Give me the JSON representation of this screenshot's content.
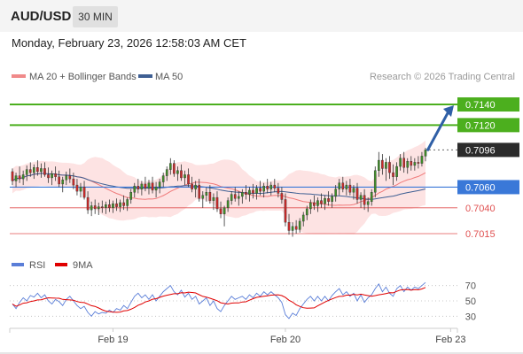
{
  "header": {
    "symbol": "AUD/USD",
    "timeframe": "30 MIN"
  },
  "timestamp": "Monday, February 23, 2026 12:58:03 AM CET",
  "credit": "Research © 2026 Trading Central",
  "colors": {
    "resistance": "#4caf1e",
    "support": "#e05050",
    "pivot": "#3a78d8",
    "current": "#2b2b2b",
    "arrow": "#2f5fa6",
    "bollinger_fill": "#fde3e3",
    "ma20": "#f07a7a",
    "ma50": "#3e5f93",
    "candle_up": "#3f8f28",
    "candle_down": "#cc2a2a",
    "rsi": "#5a7ed8",
    "rsi_ma": "#e00000"
  },
  "chart_data": [
    {
      "type": "candlestick",
      "legend": [
        {
          "name": "MA 20 + Bollinger Bands",
          "color": "#f08a8a"
        },
        {
          "name": "MA 50",
          "color": "#3e5f93"
        }
      ],
      "ylim": [
        0.6997,
        0.7158
      ],
      "x_ticks": [
        {
          "label": "Feb 19",
          "index": 28
        },
        {
          "label": "Feb 20",
          "index": 76
        },
        {
          "label": "Feb 23",
          "index": 122
        }
      ],
      "candles": [
        [
          0.7075,
          0.7078,
          0.7062,
          0.7066
        ],
        [
          0.7066,
          0.7074,
          0.706,
          0.7071
        ],
        [
          0.7071,
          0.708,
          0.7064,
          0.7068
        ],
        [
          0.7068,
          0.7076,
          0.7062,
          0.7072
        ],
        [
          0.7072,
          0.7081,
          0.7066,
          0.7077
        ],
        [
          0.7077,
          0.7084,
          0.707,
          0.7074
        ],
        [
          0.7074,
          0.7082,
          0.7068,
          0.7079
        ],
        [
          0.7079,
          0.7086,
          0.7071,
          0.7075
        ],
        [
          0.7075,
          0.7083,
          0.7069,
          0.7078
        ],
        [
          0.7078,
          0.7084,
          0.707,
          0.7072
        ],
        [
          0.7072,
          0.7079,
          0.7064,
          0.7069
        ],
        [
          0.7069,
          0.7076,
          0.7062,
          0.7073
        ],
        [
          0.7073,
          0.708,
          0.7066,
          0.707
        ],
        [
          0.707,
          0.7076,
          0.706,
          0.7063
        ],
        [
          0.7063,
          0.707,
          0.7055,
          0.7067
        ],
        [
          0.7067,
          0.7075,
          0.7062,
          0.7071
        ],
        [
          0.7071,
          0.7078,
          0.7064,
          0.7068
        ],
        [
          0.7068,
          0.7074,
          0.7058,
          0.7062
        ],
        [
          0.7062,
          0.7068,
          0.7052,
          0.7056
        ],
        [
          0.7056,
          0.7064,
          0.705,
          0.706
        ],
        [
          0.706,
          0.7066,
          0.7048,
          0.705
        ],
        [
          0.705,
          0.7056,
          0.7034,
          0.7038
        ],
        [
          0.7038,
          0.7046,
          0.7032,
          0.7042
        ],
        [
          0.7042,
          0.7048,
          0.7034,
          0.7039
        ],
        [
          0.7039,
          0.7045,
          0.7033,
          0.7041
        ],
        [
          0.7041,
          0.7047,
          0.7035,
          0.704
        ],
        [
          0.704,
          0.7046,
          0.7034,
          0.7043
        ],
        [
          0.7043,
          0.7048,
          0.7036,
          0.704
        ],
        [
          0.704,
          0.7047,
          0.7035,
          0.7044
        ],
        [
          0.7044,
          0.7049,
          0.7037,
          0.7041
        ],
        [
          0.7041,
          0.7048,
          0.7036,
          0.7045
        ],
        [
          0.7045,
          0.7052,
          0.7038,
          0.7042
        ],
        [
          0.7042,
          0.705,
          0.7037,
          0.7048
        ],
        [
          0.7048,
          0.7058,
          0.7044,
          0.7055
        ],
        [
          0.7055,
          0.7064,
          0.705,
          0.7061
        ],
        [
          0.7061,
          0.7068,
          0.7054,
          0.7058
        ],
        [
          0.7058,
          0.7066,
          0.7052,
          0.7063
        ],
        [
          0.7063,
          0.707,
          0.7056,
          0.7059
        ],
        [
          0.7059,
          0.7067,
          0.7053,
          0.7064
        ],
        [
          0.7064,
          0.707,
          0.7054,
          0.7057
        ],
        [
          0.7057,
          0.7065,
          0.705,
          0.706
        ],
        [
          0.706,
          0.7068,
          0.7054,
          0.7065
        ],
        [
          0.7065,
          0.7074,
          0.706,
          0.7071
        ],
        [
          0.7071,
          0.708,
          0.7066,
          0.7077
        ],
        [
          0.7077,
          0.7088,
          0.7072,
          0.7083
        ],
        [
          0.7083,
          0.7086,
          0.707,
          0.7073
        ],
        [
          0.7073,
          0.708,
          0.7066,
          0.7076
        ],
        [
          0.7076,
          0.7082,
          0.7066,
          0.7069
        ],
        [
          0.7069,
          0.7076,
          0.7062,
          0.7072
        ],
        [
          0.7072,
          0.7078,
          0.706,
          0.7063
        ],
        [
          0.7063,
          0.707,
          0.7055,
          0.7058
        ],
        [
          0.7058,
          0.7066,
          0.705,
          0.7062
        ],
        [
          0.7062,
          0.7068,
          0.7046,
          0.7049
        ],
        [
          0.7049,
          0.7056,
          0.704,
          0.7052
        ],
        [
          0.7052,
          0.706,
          0.7046,
          0.7055
        ],
        [
          0.7055,
          0.7062,
          0.7044,
          0.7047
        ],
        [
          0.7047,
          0.7054,
          0.7038,
          0.705
        ],
        [
          0.705,
          0.7056,
          0.7036,
          0.7039
        ],
        [
          0.7039,
          0.7046,
          0.703,
          0.7034
        ],
        [
          0.7034,
          0.7042,
          0.7022,
          0.704
        ],
        [
          0.704,
          0.705,
          0.7036,
          0.7047
        ],
        [
          0.7047,
          0.7056,
          0.7043,
          0.7053
        ],
        [
          0.7053,
          0.706,
          0.7046,
          0.7049
        ],
        [
          0.7049,
          0.7056,
          0.7042,
          0.7051
        ],
        [
          0.7051,
          0.7058,
          0.7044,
          0.7055
        ],
        [
          0.7055,
          0.7062,
          0.7048,
          0.7053
        ],
        [
          0.7053,
          0.706,
          0.7046,
          0.7057
        ],
        [
          0.7057,
          0.7063,
          0.7049,
          0.7054
        ],
        [
          0.7054,
          0.7062,
          0.7048,
          0.7059
        ],
        [
          0.7059,
          0.7066,
          0.7052,
          0.7056
        ],
        [
          0.7056,
          0.7064,
          0.705,
          0.7061
        ],
        [
          0.7061,
          0.7068,
          0.7054,
          0.7058
        ],
        [
          0.7058,
          0.7065,
          0.7052,
          0.7062
        ],
        [
          0.7062,
          0.7068,
          0.7055,
          0.7059
        ],
        [
          0.7059,
          0.7064,
          0.705,
          0.7054
        ],
        [
          0.7054,
          0.706,
          0.7044,
          0.7048
        ],
        [
          0.7048,
          0.7054,
          0.7022,
          0.7026
        ],
        [
          0.7026,
          0.7034,
          0.7014,
          0.7018
        ],
        [
          0.7018,
          0.7026,
          0.7012,
          0.7022
        ],
        [
          0.7022,
          0.7028,
          0.7015,
          0.7019
        ],
        [
          0.7019,
          0.703,
          0.7016,
          0.7027
        ],
        [
          0.7027,
          0.7036,
          0.7022,
          0.7033
        ],
        [
          0.7033,
          0.7042,
          0.7028,
          0.7039
        ],
        [
          0.7039,
          0.7048,
          0.7034,
          0.7045
        ],
        [
          0.7045,
          0.7052,
          0.7038,
          0.7042
        ],
        [
          0.7042,
          0.705,
          0.7036,
          0.7047
        ],
        [
          0.7047,
          0.7054,
          0.704,
          0.7044
        ],
        [
          0.7044,
          0.7052,
          0.7038,
          0.7049
        ],
        [
          0.7049,
          0.7056,
          0.7042,
          0.7046
        ],
        [
          0.7046,
          0.7054,
          0.704,
          0.7051
        ],
        [
          0.7051,
          0.7062,
          0.7046,
          0.7058
        ],
        [
          0.7058,
          0.7068,
          0.7052,
          0.7064
        ],
        [
          0.7064,
          0.707,
          0.7055,
          0.7058
        ],
        [
          0.7058,
          0.7066,
          0.7052,
          0.7062
        ],
        [
          0.7062,
          0.7068,
          0.7052,
          0.7055
        ],
        [
          0.7055,
          0.7062,
          0.7048,
          0.7059
        ],
        [
          0.7059,
          0.7064,
          0.7044,
          0.7048
        ],
        [
          0.7048,
          0.7055,
          0.704,
          0.7052
        ],
        [
          0.7052,
          0.7058,
          0.7038,
          0.7043
        ],
        [
          0.7043,
          0.705,
          0.7036,
          0.7046
        ],
        [
          0.7046,
          0.7058,
          0.7042,
          0.7055
        ],
        [
          0.7055,
          0.708,
          0.705,
          0.7076
        ],
        [
          0.7076,
          0.7094,
          0.707,
          0.7086
        ],
        [
          0.7086,
          0.7092,
          0.7072,
          0.7078
        ],
        [
          0.7078,
          0.7088,
          0.7066,
          0.7084
        ],
        [
          0.7084,
          0.709,
          0.7068,
          0.7074
        ],
        [
          0.7074,
          0.7082,
          0.7062,
          0.707
        ],
        [
          0.707,
          0.7084,
          0.7066,
          0.708
        ],
        [
          0.708,
          0.7092,
          0.7076,
          0.7088
        ],
        [
          0.7088,
          0.7094,
          0.7074,
          0.7079
        ],
        [
          0.7079,
          0.7088,
          0.7073,
          0.7085
        ],
        [
          0.7085,
          0.709,
          0.7076,
          0.7081
        ],
        [
          0.7081,
          0.7088,
          0.7076,
          0.7084
        ],
        [
          0.7084,
          0.709,
          0.7078,
          0.7083
        ],
        [
          0.7083,
          0.7094,
          0.708,
          0.709
        ],
        [
          0.709,
          0.7098,
          0.7085,
          0.7096
        ]
      ],
      "levels": [
        {
          "label": "0.7140",
          "value": 0.714,
          "kind": "resistance"
        },
        {
          "label": "0.7120",
          "value": 0.712,
          "kind": "resistance"
        },
        {
          "label": "0.7096",
          "value": 0.7096,
          "kind": "current"
        },
        {
          "label": "0.7060",
          "value": 0.706,
          "kind": "pivot"
        },
        {
          "label": "0.7040",
          "value": 0.704,
          "kind": "support"
        },
        {
          "label": "0.7015",
          "value": 0.7015,
          "kind": "support"
        }
      ],
      "projection": {
        "from_value": 0.7096,
        "to_value": 0.714
      }
    },
    {
      "type": "line",
      "legend": [
        {
          "name": "RSI",
          "color": "#5a7ed8"
        },
        {
          "name": "9MA",
          "color": "#e00000"
        }
      ],
      "ylim": [
        20,
        80
      ],
      "y_ticks": [
        70,
        50,
        30
      ],
      "rsi": [
        46,
        40,
        48,
        54,
        50,
        57,
        55,
        60,
        54,
        58,
        50,
        46,
        52,
        49,
        44,
        52,
        56,
        50,
        44,
        40,
        43,
        35,
        30,
        36,
        33,
        35,
        34,
        38,
        35,
        40,
        38,
        44,
        40,
        48,
        56,
        60,
        54,
        58,
        52,
        58,
        50,
        56,
        62,
        66,
        70,
        62,
        58,
        64,
        55,
        60,
        52,
        56,
        46,
        50,
        54,
        44,
        50,
        40,
        36,
        44,
        50,
        56,
        52,
        54,
        56,
        52,
        58,
        54,
        60,
        56,
        62,
        58,
        62,
        58,
        54,
        48,
        32,
        27,
        34,
        31,
        40,
        46,
        52,
        56,
        50,
        56,
        50,
        56,
        50,
        57,
        62,
        66,
        58,
        62,
        56,
        60,
        50,
        58,
        48,
        54,
        58,
        66,
        72,
        62,
        68,
        60,
        56,
        66,
        70,
        62,
        68,
        64,
        68,
        66,
        70,
        74
      ]
    }
  ]
}
